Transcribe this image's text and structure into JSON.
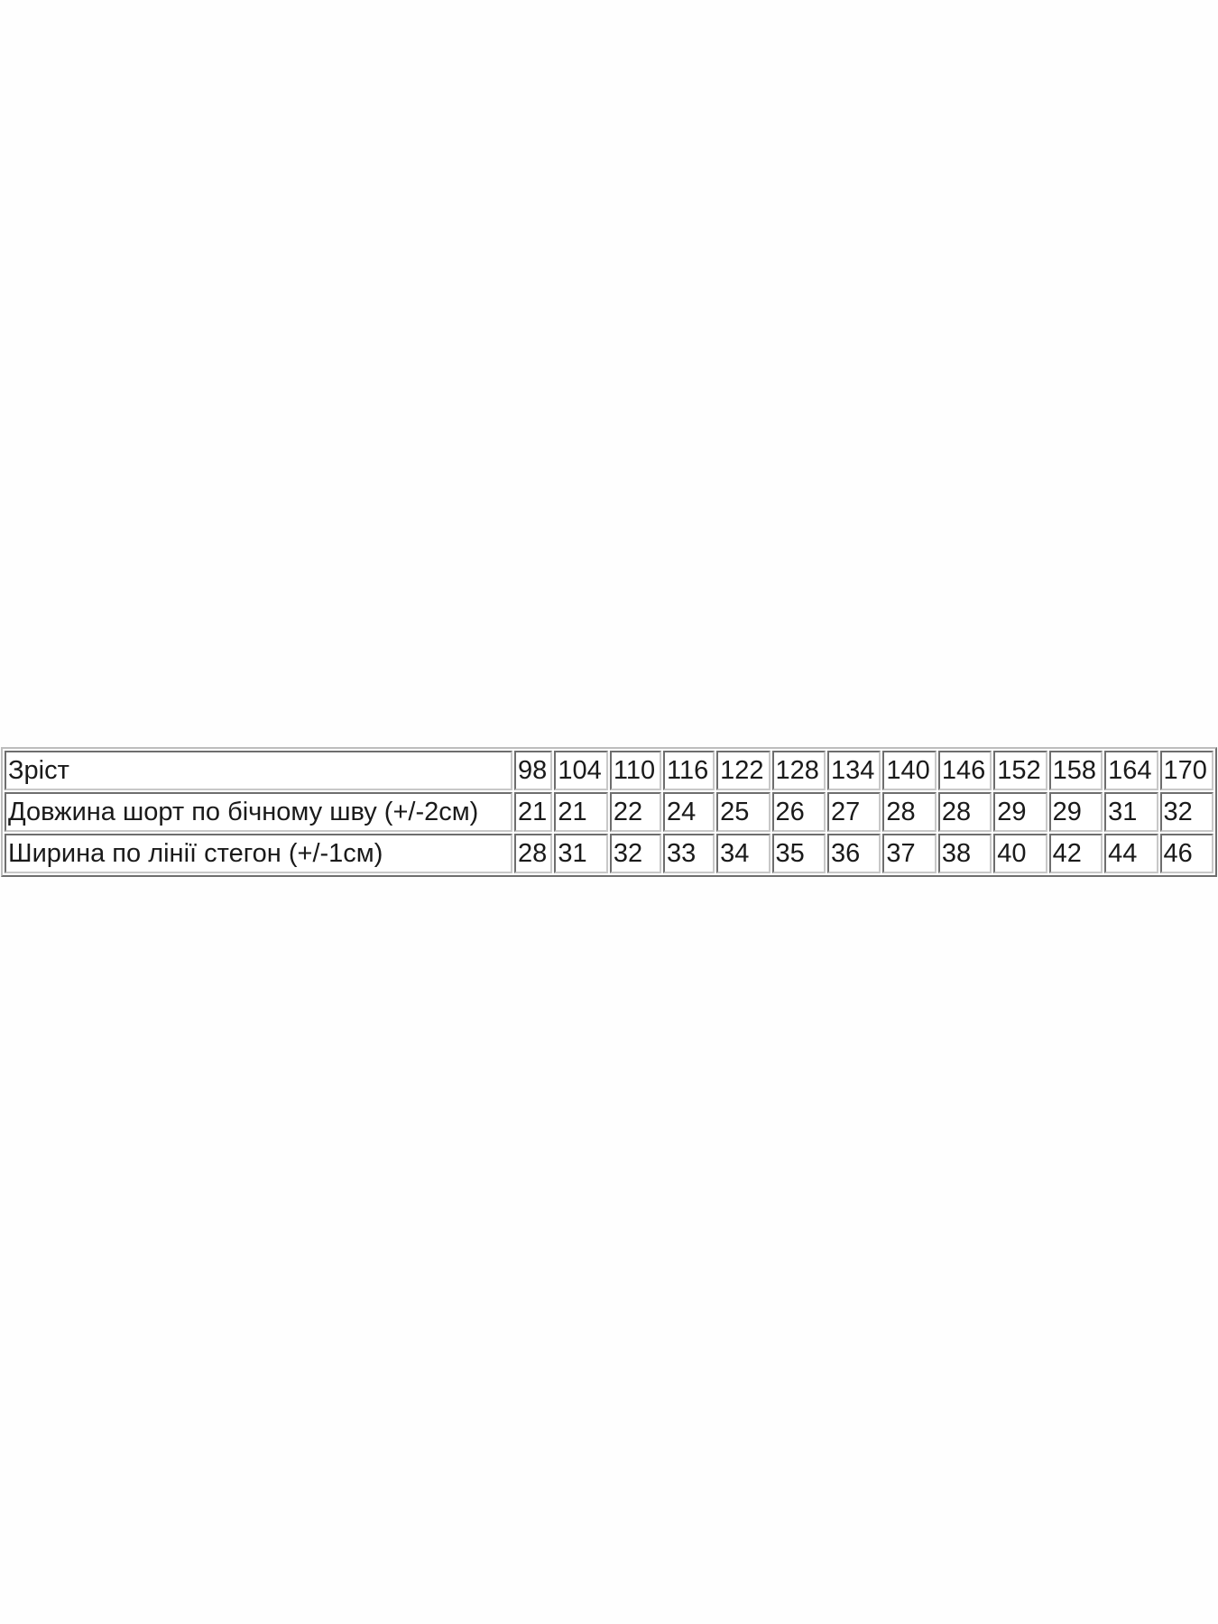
{
  "size_table": {
    "rows": [
      {
        "label": "Зріст",
        "values": [
          "98",
          "104",
          "110",
          "116",
          "122",
          "128",
          "134",
          "140",
          "146",
          "152",
          "158",
          "164",
          "170"
        ]
      },
      {
        "label": "Довжина шорт по бічному шву (+/-2см)",
        "values": [
          "21",
          "21",
          "22",
          "24",
          "25",
          "26",
          "27",
          "28",
          "28",
          "29",
          "29",
          "31",
          "32"
        ]
      },
      {
        "label": "Ширина по лінії стегон (+/-1см)",
        "values": [
          "28",
          "31",
          "32",
          "33",
          "34",
          "35",
          "36",
          "37",
          "38",
          "40",
          "42",
          "44",
          "46"
        ]
      }
    ]
  }
}
